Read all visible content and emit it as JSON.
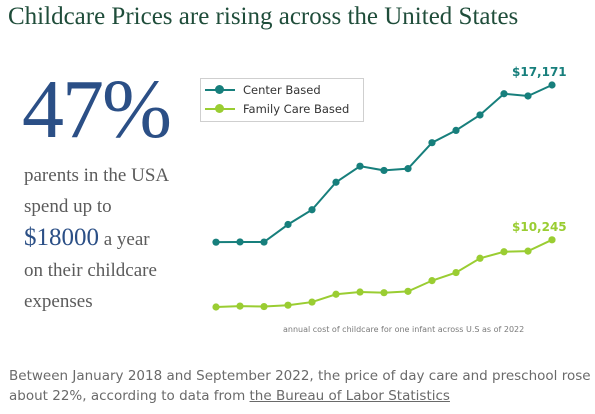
{
  "header": {
    "title": "Childcare Prices are rising across the United States"
  },
  "stat": {
    "value": "47%",
    "line1": "parents in the USA",
    "line2": "spend up to",
    "amount": "$18000",
    "amount_suffix": "a year",
    "line4": "on their childcare",
    "line5": "expenses"
  },
  "chart_data": {
    "type": "line",
    "x": [
      1,
      2,
      3,
      4,
      5,
      6,
      7,
      8,
      9,
      10,
      11,
      12,
      13,
      14,
      15
    ],
    "series": [
      {
        "name": "Center Based",
        "color": "#177f7c",
        "values": [
          10140,
          10150,
          10145,
          10930,
          11590,
          12820,
          13540,
          13350,
          13430,
          14590,
          15140,
          15830,
          16780,
          16680,
          17171
        ],
        "end_label": "$17,171"
      },
      {
        "name": "Family Care Based",
        "color": "#9acd32",
        "values": [
          7240,
          7280,
          7260,
          7320,
          7460,
          7810,
          7910,
          7880,
          7940,
          8420,
          8780,
          9420,
          9710,
          9740,
          10245
        ],
        "end_label": "$10,245"
      }
    ],
    "legend": "top-left",
    "grid": false,
    "caption": "annual cost of childcare for one infant across U.S as of 2022"
  },
  "footer": {
    "text": "Between January 2018 and September 2022, the price of day care and preschool rose about 22%, according to data from ",
    "link_text": "the Bureau of Labor Statistics"
  }
}
